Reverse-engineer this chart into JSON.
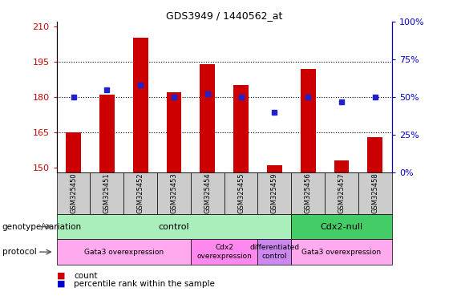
{
  "title": "GDS3949 / 1440562_at",
  "samples": [
    "GSM325450",
    "GSM325451",
    "GSM325452",
    "GSM325453",
    "GSM325454",
    "GSM325455",
    "GSM325459",
    "GSM325456",
    "GSM325457",
    "GSM325458"
  ],
  "counts": [
    165,
    181,
    205,
    182,
    194,
    185,
    151,
    192,
    153,
    163
  ],
  "percentile_ranks": [
    50,
    55,
    58,
    50,
    52,
    50,
    40,
    50,
    47,
    50
  ],
  "ylim_left": [
    148,
    212
  ],
  "ylim_right": [
    0,
    100
  ],
  "yticks_left": [
    150,
    165,
    180,
    195,
    210
  ],
  "yticks_right": [
    0,
    25,
    50,
    75,
    100
  ],
  "bar_color": "#cc0000",
  "dot_color": "#2222cc",
  "bar_bottom": 148,
  "genotype_groups": [
    {
      "label": "control",
      "start": 0,
      "end": 7,
      "color": "#aaeebb"
    },
    {
      "label": "Cdx2-null",
      "start": 7,
      "end": 10,
      "color": "#44cc66"
    }
  ],
  "protocol_groups": [
    {
      "label": "Gata3 overexpression",
      "start": 0,
      "end": 4,
      "color": "#ffaaee"
    },
    {
      "label": "Cdx2\noverexpression",
      "start": 4,
      "end": 6,
      "color": "#ff88ee"
    },
    {
      "label": "differentiated\ncontrol",
      "start": 6,
      "end": 7,
      "color": "#cc88ee"
    },
    {
      "label": "Gata3 overexpression",
      "start": 7,
      "end": 10,
      "color": "#ffaaee"
    }
  ],
  "tick_label_color_left": "#cc0000",
  "tick_label_color_right": "#0000cc",
  "xtick_bg_color": "#cccccc",
  "legend_count_color": "#cc0000",
  "legend_dot_color": "#0000cc"
}
